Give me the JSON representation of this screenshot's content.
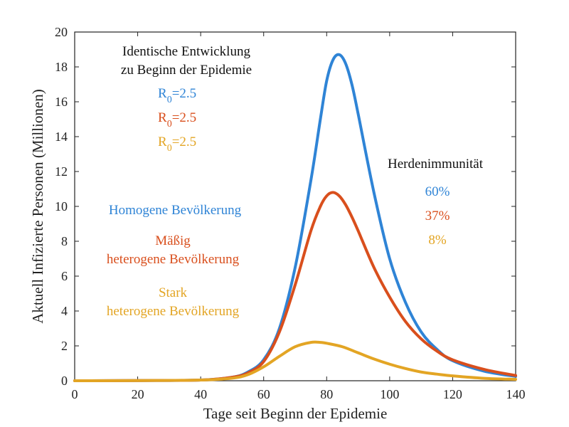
{
  "chart_data": {
    "type": "line",
    "xlabel": "Tage seit Beginn der Epidemie",
    "ylabel": "Aktuell Infizierte Personen (Millionen)",
    "xlim": [
      0,
      140
    ],
    "ylim": [
      0,
      20
    ],
    "xticks": [
      "0",
      "20",
      "40",
      "60",
      "80",
      "100",
      "120",
      "140"
    ],
    "yticks": [
      "0",
      "2",
      "4",
      "6",
      "8",
      "10",
      "12",
      "14",
      "16",
      "18",
      "20"
    ],
    "grid": false,
    "series": [
      {
        "name": "Homogene Bevölkerung",
        "color": "#2f84d6",
        "points": [
          [
            0,
            0
          ],
          [
            20,
            0.01
          ],
          [
            40,
            0.04
          ],
          [
            50,
            0.2
          ],
          [
            55,
            0.5
          ],
          [
            60,
            1.2
          ],
          [
            65,
            3.0
          ],
          [
            70,
            6.5
          ],
          [
            75,
            11.5
          ],
          [
            78,
            15.0
          ],
          [
            80,
            17.2
          ],
          [
            82,
            18.4
          ],
          [
            84,
            18.7
          ],
          [
            86,
            18.2
          ],
          [
            88,
            17.0
          ],
          [
            90,
            15.3
          ],
          [
            95,
            10.8
          ],
          [
            100,
            7.0
          ],
          [
            105,
            4.5
          ],
          [
            110,
            2.8
          ],
          [
            115,
            1.8
          ],
          [
            120,
            1.15
          ],
          [
            130,
            0.55
          ],
          [
            140,
            0.25
          ]
        ]
      },
      {
        "name": "Mäßig heterogene Bevölkerung",
        "color": "#d94f1d",
        "points": [
          [
            0,
            0
          ],
          [
            20,
            0.01
          ],
          [
            40,
            0.04
          ],
          [
            50,
            0.2
          ],
          [
            55,
            0.45
          ],
          [
            60,
            1.1
          ],
          [
            65,
            2.8
          ],
          [
            70,
            5.5
          ],
          [
            75,
            8.6
          ],
          [
            78,
            10.0
          ],
          [
            80,
            10.6
          ],
          [
            82,
            10.8
          ],
          [
            84,
            10.6
          ],
          [
            86,
            10.1
          ],
          [
            88,
            9.4
          ],
          [
            90,
            8.6
          ],
          [
            95,
            6.5
          ],
          [
            100,
            4.8
          ],
          [
            105,
            3.4
          ],
          [
            110,
            2.4
          ],
          [
            115,
            1.7
          ],
          [
            120,
            1.2
          ],
          [
            130,
            0.65
          ],
          [
            140,
            0.3
          ]
        ]
      },
      {
        "name": "Stark heterogene Bevölkerung",
        "color": "#e3a524",
        "points": [
          [
            0,
            0
          ],
          [
            20,
            0.01
          ],
          [
            40,
            0.04
          ],
          [
            50,
            0.15
          ],
          [
            55,
            0.35
          ],
          [
            60,
            0.8
          ],
          [
            65,
            1.4
          ],
          [
            70,
            1.95
          ],
          [
            75,
            2.2
          ],
          [
            78,
            2.2
          ],
          [
            80,
            2.15
          ],
          [
            85,
            1.95
          ],
          [
            90,
            1.6
          ],
          [
            95,
            1.25
          ],
          [
            100,
            0.95
          ],
          [
            105,
            0.7
          ],
          [
            110,
            0.5
          ],
          [
            115,
            0.38
          ],
          [
            120,
            0.28
          ],
          [
            130,
            0.14
          ],
          [
            140,
            0.08
          ]
        ]
      }
    ],
    "annotations": {
      "title_line1": "Identische Entwicklung",
      "title_line2": "zu Beginn der Epidemie",
      "r0_symbol": "R",
      "r0_sub": "0",
      "r0_value": "=2.5",
      "pop_blue": "Homogene Bevölkerung",
      "pop_red_1": "Mäßig",
      "pop_red_2": "heterogene Bevölkerung",
      "pop_gold_1": "Stark",
      "pop_gold_2": "heterogene Bevölkerung",
      "herd_title": "Herdenimmunität",
      "herd_blue": "60%",
      "herd_red": "37%",
      "herd_gold": "8%"
    }
  }
}
